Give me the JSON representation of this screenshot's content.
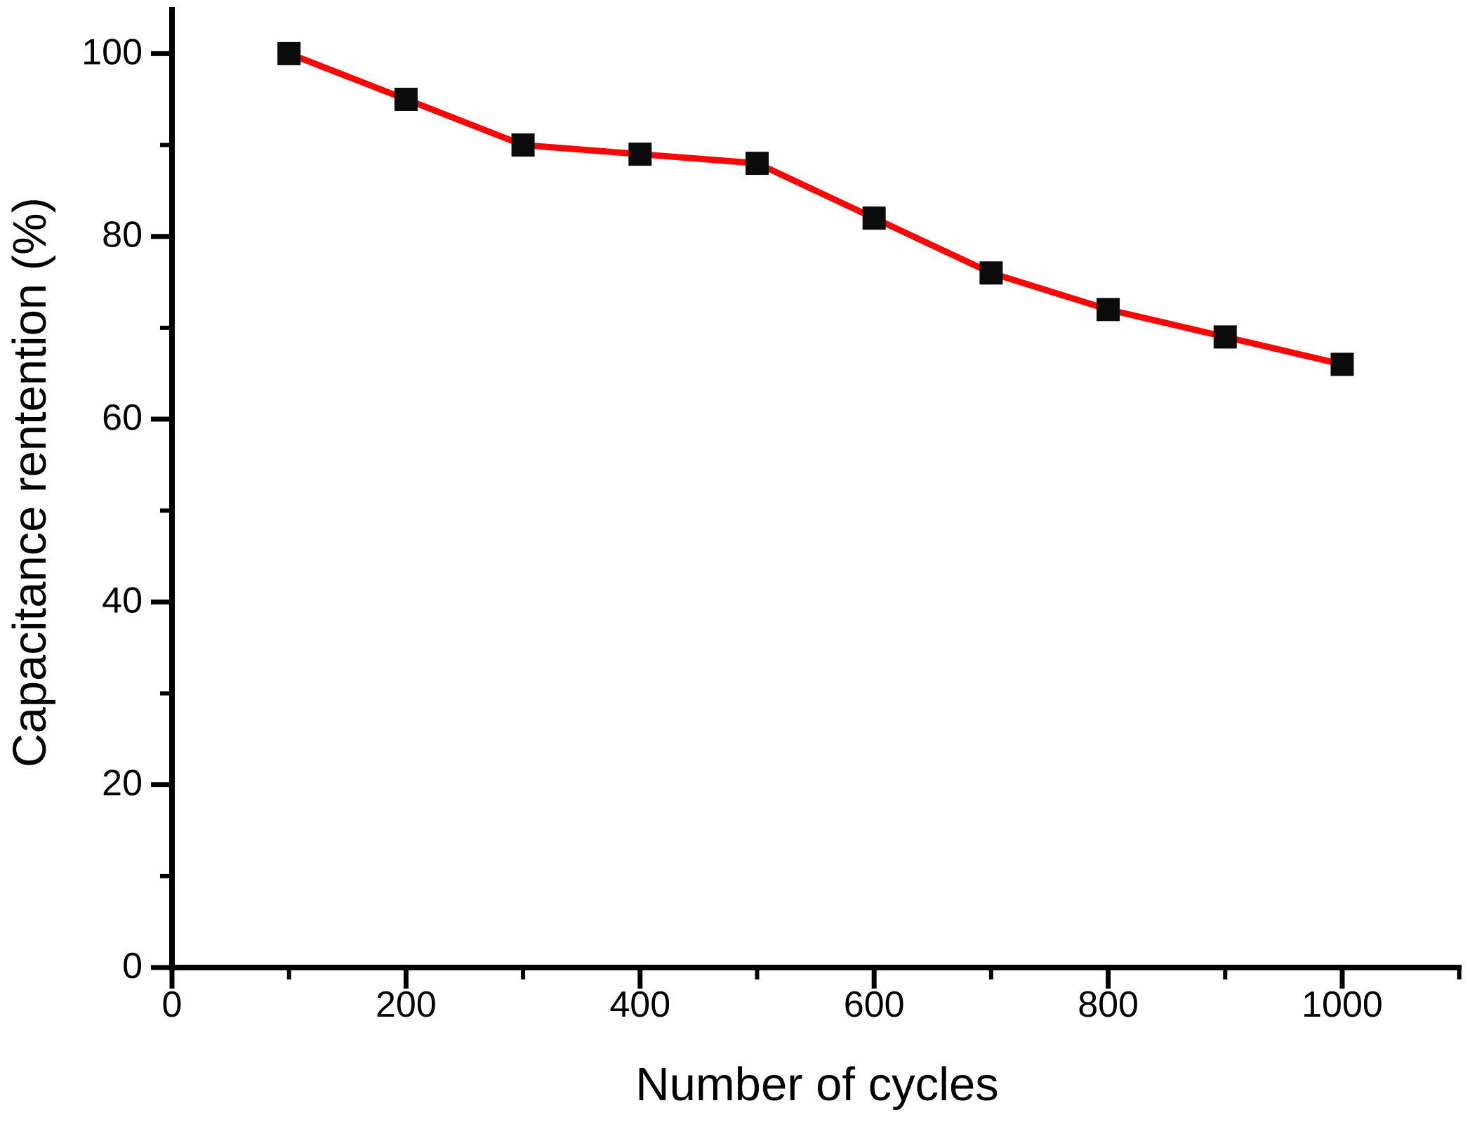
{
  "chart_data": {
    "type": "line",
    "title": "",
    "xlabel": "Number of cycles",
    "ylabel": "Capacitance rentention (%)",
    "series": [
      {
        "name": "Capacitance retention",
        "x": [
          100,
          200,
          300,
          400,
          500,
          600,
          700,
          800,
          900,
          1000
        ],
        "values": [
          100,
          95,
          90,
          89,
          88,
          82,
          76,
          72,
          69,
          66
        ],
        "line_color": "#f60808",
        "marker": "square",
        "marker_color": "#0b0b0b"
      }
    ],
    "xlim": [
      0,
      1102
    ],
    "ylim": [
      0,
      105.1
    ],
    "x_major_ticks": [
      0,
      200,
      400,
      600,
      800,
      1000
    ],
    "x_tick_labels": [
      "0",
      "200",
      "400",
      "600",
      "800",
      "1000"
    ],
    "x_minor_ticks": [
      100,
      300,
      500,
      700,
      900,
      1100
    ],
    "y_major_ticks": [
      0,
      20,
      40,
      60,
      80,
      100
    ],
    "y_tick_labels": [
      "0",
      "20",
      "40",
      "60",
      "80",
      "100"
    ],
    "y_minor_ticks": [
      10,
      30,
      50,
      70,
      90
    ],
    "grid": false,
    "legend": "none",
    "axis_color": "#000000",
    "tick_label_color": "#000000"
  }
}
